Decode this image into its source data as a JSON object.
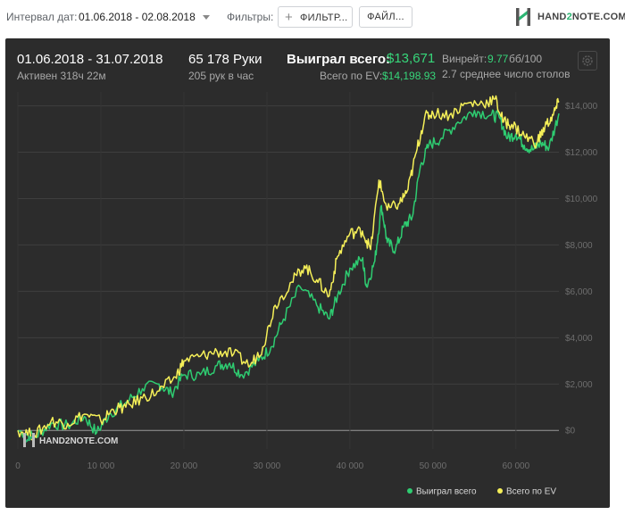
{
  "toolbar": {
    "interval_label": "Интервал дат:",
    "date_range": "01.06.2018 - 02.08.2018",
    "filters_label": "Фильтры:",
    "filter_button": "ФИЛЬТР...",
    "file_button": "ФАЙЛ...",
    "logo": "HAND2NOTE.COM"
  },
  "summary": {
    "period": "01.06.2018 - 31.07.2018",
    "active": "Активен 318ч 22м",
    "hands": "65 178 Руки",
    "hands_per_hour": "205 рук в час",
    "won_label": "Выиграл всего:",
    "won_value": "$13,671",
    "ev_label": "Всего по EV:",
    "ev_value": "$14,198.93",
    "winrate_label": "Винрейт:",
    "winrate_value": "9.77",
    "winrate_suffix": "бб/100",
    "tables": "2.7 среднее число столов"
  },
  "colors": {
    "won": "#2ecc71",
    "ev": "#f5ef58",
    "panel_bg": "#2c2c2c"
  },
  "chart_data": {
    "type": "line",
    "watermark": "HAND2NOTE.COM",
    "x_ticks": [
      "0",
      "10 000",
      "20 000",
      "30 000",
      "40 000",
      "50 000",
      "60 000"
    ],
    "y_ticks": [
      "$0",
      "$2,000",
      "$4,000",
      "$6,000",
      "$8,000",
      "$10,000",
      "$12,000",
      "$14,000"
    ],
    "xlim": [
      0,
      65178
    ],
    "ylim": [
      -800,
      14600
    ],
    "grid": true,
    "legend_position": "bottom-right",
    "series": [
      {
        "name": "Выиграл всего",
        "color": "#2ecc71",
        "points": [
          [
            0,
            0
          ],
          [
            2000,
            -300
          ],
          [
            4000,
            300
          ],
          [
            6000,
            200
          ],
          [
            8000,
            600
          ],
          [
            9500,
            -100
          ],
          [
            11000,
            700
          ],
          [
            13000,
            1200
          ],
          [
            15000,
            1800
          ],
          [
            17000,
            2000
          ],
          [
            18500,
            1600
          ],
          [
            20000,
            2400
          ],
          [
            22000,
            2400
          ],
          [
            24000,
            2800
          ],
          [
            25500,
            2900
          ],
          [
            27000,
            2400
          ],
          [
            29000,
            3000
          ],
          [
            30500,
            3600
          ],
          [
            32000,
            4800
          ],
          [
            34000,
            6200
          ],
          [
            36000,
            5400
          ],
          [
            37500,
            4800
          ],
          [
            38500,
            5800
          ],
          [
            40000,
            7000
          ],
          [
            41500,
            7400
          ],
          [
            42000,
            6200
          ],
          [
            43000,
            7300
          ],
          [
            43800,
            9700
          ],
          [
            44500,
            8100
          ],
          [
            45500,
            7800
          ],
          [
            46500,
            8800
          ],
          [
            47500,
            9200
          ],
          [
            48500,
            11400
          ],
          [
            49500,
            12300
          ],
          [
            51000,
            12600
          ],
          [
            53000,
            13300
          ],
          [
            55000,
            13800
          ],
          [
            57000,
            13600
          ],
          [
            58000,
            13500
          ],
          [
            59000,
            12600
          ],
          [
            60000,
            12800
          ],
          [
            61000,
            12300
          ],
          [
            62000,
            12100
          ],
          [
            63000,
            12400
          ],
          [
            64000,
            12200
          ],
          [
            65178,
            13671
          ]
        ]
      },
      {
        "name": "Всего по EV",
        "color": "#f5ef58",
        "points": [
          [
            0,
            0
          ],
          [
            2000,
            -200
          ],
          [
            4000,
            400
          ],
          [
            6000,
            300
          ],
          [
            8000,
            700
          ],
          [
            10000,
            400
          ],
          [
            11500,
            900
          ],
          [
            13000,
            1000
          ],
          [
            15000,
            1400
          ],
          [
            17000,
            1700
          ],
          [
            19000,
            2300
          ],
          [
            20000,
            3000
          ],
          [
            22000,
            3200
          ],
          [
            24000,
            3400
          ],
          [
            26000,
            3300
          ],
          [
            28000,
            2800
          ],
          [
            29500,
            3600
          ],
          [
            31000,
            5400
          ],
          [
            33000,
            6400
          ],
          [
            34500,
            7100
          ],
          [
            36000,
            6500
          ],
          [
            37500,
            5800
          ],
          [
            38500,
            7500
          ],
          [
            40000,
            8500
          ],
          [
            41500,
            8600
          ],
          [
            42500,
            7800
          ],
          [
            43500,
            10800
          ],
          [
            44500,
            9500
          ],
          [
            46000,
            9800
          ],
          [
            47000,
            10400
          ],
          [
            48000,
            12000
          ],
          [
            49000,
            13500
          ],
          [
            50000,
            13700
          ],
          [
            52000,
            13600
          ],
          [
            54000,
            14100
          ],
          [
            56000,
            14100
          ],
          [
            57500,
            14300
          ],
          [
            58500,
            13300
          ],
          [
            59500,
            13200
          ],
          [
            61000,
            12700
          ],
          [
            62500,
            12400
          ],
          [
            63500,
            13100
          ],
          [
            64500,
            13600
          ],
          [
            65178,
            14199
          ]
        ]
      }
    ]
  }
}
